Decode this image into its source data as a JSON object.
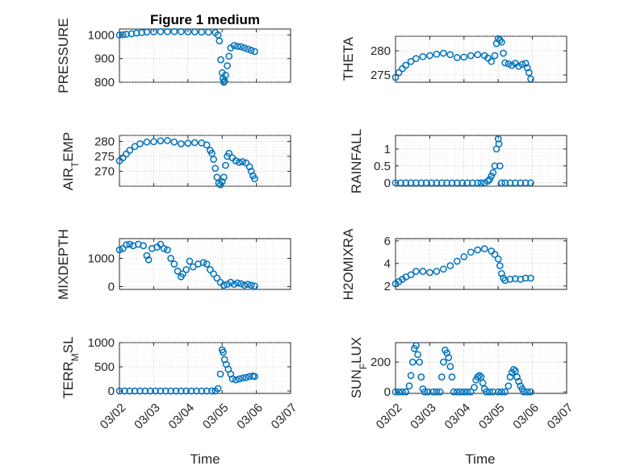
{
  "chart_data": [
    {
      "type": "scatter",
      "title": "Figure 1 medium",
      "ylabel": "PRESSURE",
      "yticks": [
        "800",
        "900",
        "1000"
      ],
      "ylim": [
        800,
        1025
      ],
      "xlim": [
        "03/02",
        "03/07"
      ],
      "grid": true,
      "points": [
        [
          0.0,
          1000
        ],
        [
          0.1,
          1001
        ],
        [
          0.2,
          1003
        ],
        [
          0.35,
          1005
        ],
        [
          0.5,
          1008
        ],
        [
          0.65,
          1010
        ],
        [
          0.8,
          1012
        ],
        [
          1.0,
          1013
        ],
        [
          1.2,
          1014
        ],
        [
          1.4,
          1014
        ],
        [
          1.6,
          1014
        ],
        [
          1.8,
          1014
        ],
        [
          2.0,
          1013
        ],
        [
          2.2,
          1013
        ],
        [
          2.4,
          1012
        ],
        [
          2.6,
          1012
        ],
        [
          2.8,
          1010
        ],
        [
          2.88,
          1000
        ],
        [
          2.92,
          975
        ],
        [
          2.96,
          895
        ],
        [
          3.0,
          840
        ],
        [
          3.03,
          815
        ],
        [
          3.05,
          800
        ],
        [
          3.07,
          805
        ],
        [
          3.1,
          830
        ],
        [
          3.15,
          870
        ],
        [
          3.2,
          910
        ],
        [
          3.25,
          945
        ],
        [
          3.35,
          955
        ],
        [
          3.45,
          952
        ],
        [
          3.55,
          950
        ],
        [
          3.65,
          945
        ],
        [
          3.75,
          940
        ],
        [
          3.85,
          935
        ],
        [
          3.95,
          930
        ]
      ]
    },
    {
      "type": "scatter",
      "ylabel": "THETA",
      "yticks": [
        "275",
        "280"
      ],
      "ylim": [
        273.5,
        283
      ],
      "xlim": [
        "03/02",
        "03/07"
      ],
      "grid": true,
      "points": [
        [
          0.0,
          274.5
        ],
        [
          0.1,
          275.5
        ],
        [
          0.2,
          276.3
        ],
        [
          0.3,
          277
        ],
        [
          0.45,
          277.8
        ],
        [
          0.6,
          278.4
        ],
        [
          0.8,
          278.8
        ],
        [
          1.0,
          279
        ],
        [
          1.2,
          279.3
        ],
        [
          1.4,
          279.5
        ],
        [
          1.6,
          279.2
        ],
        [
          1.8,
          278.6
        ],
        [
          2.0,
          278.7
        ],
        [
          2.2,
          279
        ],
        [
          2.4,
          279.2
        ],
        [
          2.6,
          279
        ],
        [
          2.7,
          278.5
        ],
        [
          2.8,
          277.8
        ],
        [
          2.9,
          279
        ],
        [
          2.95,
          281.5
        ],
        [
          3.0,
          282.5
        ],
        [
          3.05,
          282.2
        ],
        [
          3.1,
          281.8
        ],
        [
          3.15,
          279.5
        ],
        [
          3.2,
          277.5
        ],
        [
          3.3,
          277.3
        ],
        [
          3.4,
          277
        ],
        [
          3.5,
          277.4
        ],
        [
          3.6,
          276.8
        ],
        [
          3.7,
          277.2
        ],
        [
          3.8,
          277.4
        ],
        [
          3.85,
          276.5
        ],
        [
          3.9,
          275.5
        ],
        [
          3.95,
          274.2
        ]
      ]
    },
    {
      "type": "scatter",
      "ylabel": "AIR_TEMP",
      "yticks": [
        "270",
        "275",
        "280"
      ],
      "ylim": [
        265,
        282
      ],
      "xlim": [
        "03/02",
        "03/07"
      ],
      "grid": true,
      "points": [
        [
          0.0,
          273.5
        ],
        [
          0.1,
          274.5
        ],
        [
          0.2,
          275.8
        ],
        [
          0.3,
          277
        ],
        [
          0.45,
          278.3
        ],
        [
          0.6,
          279.2
        ],
        [
          0.8,
          279.8
        ],
        [
          1.0,
          279.9
        ],
        [
          1.2,
          280.2
        ],
        [
          1.4,
          280.3
        ],
        [
          1.6,
          279.8
        ],
        [
          1.8,
          279.2
        ],
        [
          2.0,
          279.4
        ],
        [
          2.2,
          279.6
        ],
        [
          2.4,
          279.5
        ],
        [
          2.55,
          278.8
        ],
        [
          2.65,
          277
        ],
        [
          2.7,
          276
        ],
        [
          2.75,
          274
        ],
        [
          2.8,
          271
        ],
        [
          2.85,
          268
        ],
        [
          2.9,
          266
        ],
        [
          2.95,
          265.5
        ],
        [
          3.0,
          266.5
        ],
        [
          3.05,
          268
        ],
        [
          3.1,
          272
        ],
        [
          3.15,
          275
        ],
        [
          3.2,
          276
        ],
        [
          3.3,
          274.5
        ],
        [
          3.4,
          273.5
        ],
        [
          3.5,
          273
        ],
        [
          3.6,
          273.2
        ],
        [
          3.7,
          272.8
        ],
        [
          3.8,
          271.5
        ],
        [
          3.85,
          270
        ],
        [
          3.9,
          268.5
        ],
        [
          3.95,
          267.5
        ]
      ]
    },
    {
      "type": "scatter",
      "ylabel": "RAINFALL",
      "yticks": [
        "0",
        "0.5",
        "1"
      ],
      "ylim": [
        -0.1,
        1.4
      ],
      "xlim": [
        "03/02",
        "03/07"
      ],
      "grid": true,
      "points": [
        [
          0.0,
          0
        ],
        [
          0.15,
          0
        ],
        [
          0.3,
          0
        ],
        [
          0.45,
          0
        ],
        [
          0.6,
          0
        ],
        [
          0.75,
          0
        ],
        [
          0.9,
          0
        ],
        [
          1.05,
          0
        ],
        [
          1.2,
          0
        ],
        [
          1.35,
          0
        ],
        [
          1.5,
          0
        ],
        [
          1.65,
          0
        ],
        [
          1.8,
          0
        ],
        [
          1.95,
          0
        ],
        [
          2.1,
          0
        ],
        [
          2.25,
          0
        ],
        [
          2.4,
          0
        ],
        [
          2.5,
          0
        ],
        [
          2.6,
          0
        ],
        [
          2.7,
          0.05
        ],
        [
          2.75,
          0.1
        ],
        [
          2.8,
          0.2
        ],
        [
          2.85,
          0.3
        ],
        [
          2.9,
          0.5
        ],
        [
          2.95,
          1.0
        ],
        [
          3.0,
          1.3
        ],
        [
          3.02,
          1.15
        ],
        [
          3.05,
          0.5
        ],
        [
          3.1,
          0
        ],
        [
          3.2,
          0
        ],
        [
          3.35,
          0
        ],
        [
          3.5,
          0
        ],
        [
          3.65,
          0
        ],
        [
          3.8,
          0
        ],
        [
          3.95,
          0
        ]
      ]
    },
    {
      "type": "scatter",
      "ylabel": "MIXDEPTH",
      "yticks": [
        "0",
        "1000"
      ],
      "ylim": [
        -100,
        1700
      ],
      "xlim": [
        "03/02",
        "03/07"
      ],
      "grid": true,
      "points": [
        [
          0.0,
          1300
        ],
        [
          0.1,
          1350
        ],
        [
          0.2,
          1480
        ],
        [
          0.3,
          1500
        ],
        [
          0.4,
          1450
        ],
        [
          0.55,
          1500
        ],
        [
          0.7,
          1450
        ],
        [
          0.8,
          1100
        ],
        [
          0.85,
          950
        ],
        [
          0.95,
          1350
        ],
        [
          1.1,
          1400
        ],
        [
          1.2,
          1500
        ],
        [
          1.3,
          1350
        ],
        [
          1.4,
          1300
        ],
        [
          1.5,
          1000
        ],
        [
          1.6,
          800
        ],
        [
          1.7,
          550
        ],
        [
          1.8,
          350
        ],
        [
          1.85,
          450
        ],
        [
          1.95,
          600
        ],
        [
          2.05,
          900
        ],
        [
          2.15,
          700
        ],
        [
          2.3,
          800
        ],
        [
          2.45,
          850
        ],
        [
          2.55,
          800
        ],
        [
          2.65,
          600
        ],
        [
          2.75,
          450
        ],
        [
          2.85,
          300
        ],
        [
          2.95,
          150
        ],
        [
          3.05,
          50
        ],
        [
          3.15,
          80
        ],
        [
          3.25,
          150
        ],
        [
          3.35,
          80
        ],
        [
          3.45,
          130
        ],
        [
          3.55,
          100
        ],
        [
          3.65,
          50
        ],
        [
          3.75,
          80
        ],
        [
          3.85,
          50
        ],
        [
          3.95,
          20
        ]
      ]
    },
    {
      "type": "scatter",
      "ylabel": "H2OMIXRA",
      "yticks": [
        "2",
        "4",
        "6"
      ],
      "ylim": [
        1.7,
        6.2
      ],
      "xlim": [
        "03/02",
        "03/07"
      ],
      "grid": true,
      "points": [
        [
          0.0,
          2.2
        ],
        [
          0.1,
          2.4
        ],
        [
          0.2,
          2.6
        ],
        [
          0.3,
          2.8
        ],
        [
          0.45,
          3.0
        ],
        [
          0.6,
          3.3
        ],
        [
          0.8,
          3.3
        ],
        [
          1.0,
          3.2
        ],
        [
          1.2,
          3.3
        ],
        [
          1.4,
          3.5
        ],
        [
          1.6,
          3.8
        ],
        [
          1.8,
          4.2
        ],
        [
          2.0,
          4.6
        ],
        [
          2.2,
          5.0
        ],
        [
          2.4,
          5.2
        ],
        [
          2.6,
          5.3
        ],
        [
          2.8,
          5.1
        ],
        [
          2.9,
          4.8
        ],
        [
          3.0,
          4.4
        ],
        [
          3.05,
          3.8
        ],
        [
          3.1,
          3.1
        ],
        [
          3.15,
          2.7
        ],
        [
          3.2,
          2.5
        ],
        [
          3.35,
          2.6
        ],
        [
          3.5,
          2.65
        ],
        [
          3.65,
          2.6
        ],
        [
          3.8,
          2.7
        ],
        [
          3.95,
          2.7
        ]
      ]
    },
    {
      "type": "scatter",
      "ylabel": "TERR_MSL",
      "yticks": [
        "0",
        "500",
        "1000"
      ],
      "ylim": [
        -50,
        1000
      ],
      "xlim": [
        "03/02",
        "03/07"
      ],
      "xticks": [
        "03/02",
        "03/03",
        "03/04",
        "03/05",
        "03/06",
        "03/07"
      ],
      "xlabel": "Time",
      "grid": true,
      "points": [
        [
          0.0,
          0
        ],
        [
          0.15,
          0
        ],
        [
          0.3,
          0
        ],
        [
          0.45,
          0
        ],
        [
          0.6,
          0
        ],
        [
          0.75,
          0
        ],
        [
          0.9,
          0
        ],
        [
          1.05,
          0
        ],
        [
          1.2,
          0
        ],
        [
          1.35,
          0
        ],
        [
          1.5,
          0
        ],
        [
          1.65,
          0
        ],
        [
          1.8,
          0
        ],
        [
          1.95,
          0
        ],
        [
          2.1,
          0
        ],
        [
          2.25,
          0
        ],
        [
          2.4,
          0
        ],
        [
          2.55,
          0
        ],
        [
          2.7,
          0
        ],
        [
          2.8,
          0
        ],
        [
          2.88,
          50
        ],
        [
          2.95,
          350
        ],
        [
          3.0,
          850
        ],
        [
          3.03,
          800
        ],
        [
          3.07,
          650
        ],
        [
          3.12,
          550
        ],
        [
          3.18,
          450
        ],
        [
          3.25,
          350
        ],
        [
          3.3,
          250
        ],
        [
          3.4,
          230
        ],
        [
          3.5,
          250
        ],
        [
          3.6,
          270
        ],
        [
          3.7,
          280
        ],
        [
          3.8,
          300
        ],
        [
          3.9,
          310
        ],
        [
          3.95,
          300
        ]
      ]
    },
    {
      "type": "scatter",
      "ylabel": "SUN_FLUX",
      "yticks": [
        "0",
        "200"
      ],
      "ylim": [
        -10,
        330
      ],
      "xlim": [
        "03/02",
        "03/07"
      ],
      "xticks": [
        "03/02",
        "03/03",
        "03/04",
        "03/05",
        "03/06",
        "03/07"
      ],
      "xlabel": "Time",
      "grid": true,
      "points": [
        [
          0.0,
          0
        ],
        [
          0.1,
          0
        ],
        [
          0.2,
          0
        ],
        [
          0.3,
          0
        ],
        [
          0.4,
          40
        ],
        [
          0.45,
          110
        ],
        [
          0.5,
          200
        ],
        [
          0.55,
          290
        ],
        [
          0.6,
          310
        ],
        [
          0.65,
          250
        ],
        [
          0.7,
          200
        ],
        [
          0.75,
          100
        ],
        [
          0.8,
          20
        ],
        [
          0.85,
          0
        ],
        [
          0.95,
          0
        ],
        [
          1.1,
          0
        ],
        [
          1.2,
          0
        ],
        [
          1.3,
          0
        ],
        [
          1.35,
          100
        ],
        [
          1.4,
          200
        ],
        [
          1.45,
          280
        ],
        [
          1.5,
          260
        ],
        [
          1.55,
          230
        ],
        [
          1.6,
          170
        ],
        [
          1.65,
          100
        ],
        [
          1.7,
          0
        ],
        [
          1.8,
          0
        ],
        [
          1.9,
          0
        ],
        [
          2.0,
          0
        ],
        [
          2.1,
          0
        ],
        [
          2.2,
          0
        ],
        [
          2.3,
          30
        ],
        [
          2.35,
          80
        ],
        [
          2.4,
          100
        ],
        [
          2.45,
          110
        ],
        [
          2.5,
          100
        ],
        [
          2.55,
          60
        ],
        [
          2.6,
          20
        ],
        [
          2.65,
          0
        ],
        [
          2.75,
          0
        ],
        [
          2.85,
          0
        ],
        [
          3.0,
          0
        ],
        [
          3.1,
          0
        ],
        [
          3.2,
          0
        ],
        [
          3.3,
          40
        ],
        [
          3.35,
          100
        ],
        [
          3.4,
          130
        ],
        [
          3.45,
          150
        ],
        [
          3.5,
          140
        ],
        [
          3.55,
          100
        ],
        [
          3.6,
          70
        ],
        [
          3.65,
          40
        ],
        [
          3.7,
          20
        ],
        [
          3.75,
          0
        ],
        [
          3.85,
          0
        ],
        [
          3.95,
          0
        ]
      ]
    }
  ]
}
